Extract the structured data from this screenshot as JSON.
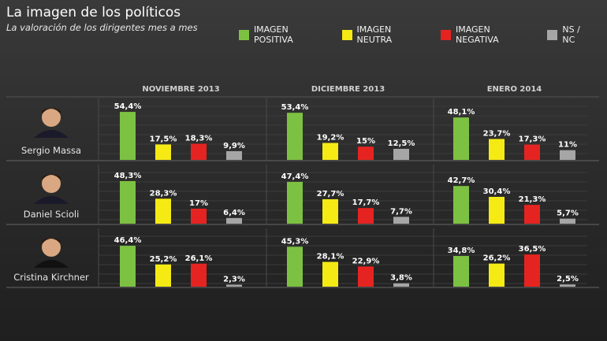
{
  "header": {
    "title": "La imagen de los políticos",
    "subtitle": "La valoración de los dirigentes mes a mes"
  },
  "chart_data": {
    "type": "bar",
    "title": "La imagen de los políticos",
    "subtitle": "La valoración de los dirigentes mes a mes",
    "ylim": [
      0,
      60
    ],
    "legend_position": "top-right",
    "series_legend": [
      {
        "name": "IMAGEN POSITIVA",
        "color": "#7dc142"
      },
      {
        "name": "IMAGEN NEUTRA",
        "color": "#f5ea14"
      },
      {
        "name": "IMAGEN NEGATIVA",
        "color": "#e52421"
      },
      {
        "name": "NS / NC",
        "color": "#a6a6a6"
      }
    ],
    "periods": [
      "NOVIEMBRE 2013",
      "DICIEMBRE 2013",
      "ENERO 2014"
    ],
    "politicians": [
      {
        "name": "Sergio Massa",
        "values": [
          [
            54.4,
            17.5,
            18.3,
            9.9
          ],
          [
            53.4,
            19.2,
            15,
            12.5
          ],
          [
            48.1,
            23.7,
            17.3,
            11
          ]
        ],
        "labels": [
          [
            "54,4%",
            "17,5%",
            "18,3%",
            "9,9%"
          ],
          [
            "53,4%",
            "19,2%",
            "15%",
            "12,5%"
          ],
          [
            "48,1%",
            "23,7%",
            "17,3%",
            "11%"
          ]
        ]
      },
      {
        "name": "Daniel Scioli",
        "values": [
          [
            48.3,
            28.3,
            17,
            6.4
          ],
          [
            47.4,
            27.7,
            17.7,
            7.7
          ],
          [
            42.7,
            30.4,
            21.3,
            5.7
          ]
        ],
        "labels": [
          [
            "48,3%",
            "28,3%",
            "17%",
            "6,4%"
          ],
          [
            "47,4%",
            "27,7%",
            "17,7%",
            "7,7%"
          ],
          [
            "42,7%",
            "30,4%",
            "21,3%",
            "5,7%"
          ]
        ]
      },
      {
        "name": "Cristina Kirchner",
        "values": [
          [
            46.4,
            25.2,
            26.1,
            2.3
          ],
          [
            45.3,
            28.1,
            22.9,
            3.8
          ],
          [
            34.8,
            26.2,
            36.5,
            2.5
          ]
        ],
        "labels": [
          [
            "46,4%",
            "25,2%",
            "26,1%",
            "2,3%"
          ],
          [
            "45,3%",
            "28,1%",
            "22,9%",
            "3,8%"
          ],
          [
            "34,8%",
            "26,2%",
            "36,5%",
            "2,5%"
          ]
        ]
      }
    ]
  }
}
